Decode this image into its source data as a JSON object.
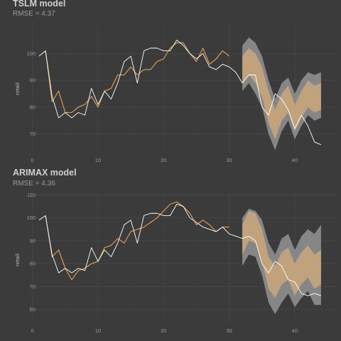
{
  "chart_data": [
    {
      "type": "line",
      "title": "TSLM model",
      "subtitle": "RMSE = 4.37",
      "xlabel": "",
      "ylabel": "retail",
      "xlim": [
        -0.5,
        46.5
      ],
      "ylim": [
        63,
        112
      ],
      "xticks": [
        0,
        10,
        20,
        30,
        40
      ],
      "yticks": [
        70,
        80,
        90,
        100
      ],
      "grid": true,
      "colors": {
        "actual": "#ffffff",
        "fitted": "#e6a056",
        "band80": "#c9a87c",
        "band95": "#8f8f8f"
      },
      "actual": {
        "x": [
          1,
          2,
          3,
          4,
          5,
          6,
          7,
          8,
          9,
          10,
          11,
          12,
          13,
          14,
          15,
          16,
          17,
          18,
          19,
          20,
          21,
          22,
          23,
          24,
          25,
          26,
          27,
          28,
          29,
          30,
          31,
          32,
          33,
          34,
          35,
          36,
          37,
          38,
          39,
          40,
          41,
          42,
          43,
          44
        ],
        "y": [
          99,
          101,
          84,
          76,
          78,
          76,
          78,
          77,
          87,
          81,
          86,
          83,
          89,
          97,
          99,
          89,
          101,
          102,
          102,
          101,
          101,
          105,
          103,
          100,
          98,
          100,
          95,
          94,
          96,
          95,
          93,
          89,
          92,
          92,
          80,
          77,
          85,
          83,
          79,
          72,
          77,
          73,
          67,
          66
        ]
      },
      "fitted": {
        "x": [
          2,
          3,
          4,
          5,
          6,
          7,
          8,
          9,
          10,
          11,
          12,
          13,
          14,
          15,
          16,
          17,
          18,
          19,
          20,
          21,
          22,
          23,
          24,
          25,
          26,
          27,
          28,
          29,
          30
        ],
        "y": [
          101,
          82,
          86,
          78,
          78,
          80,
          81,
          84,
          80,
          86,
          87,
          92,
          92,
          95,
          92,
          94,
          94,
          97,
          98,
          102,
          104,
          104,
          100,
          97,
          102,
          96,
          98,
          101,
          99
        ]
      },
      "forecast": {
        "x": [
          32,
          33,
          34,
          35,
          36,
          37,
          38,
          39,
          40,
          41,
          42,
          43,
          44
        ],
        "mean": [
          94,
          97,
          95,
          90,
          80,
          73,
          80,
          83,
          76,
          81,
          85,
          83,
          84
        ],
        "lo80": [
          89,
          92,
          89,
          84,
          74,
          68,
          75,
          78,
          71,
          76,
          80,
          78,
          79
        ],
        "hi80": [
          99,
          102,
          100,
          95,
          86,
          79,
          85,
          88,
          81,
          86,
          90,
          88,
          89
        ],
        "lo95": [
          86,
          89,
          85,
          80,
          70,
          64,
          71,
          75,
          68,
          73,
          77,
          75,
          76
        ],
        "hi95": [
          103,
          106,
          104,
          99,
          90,
          83,
          89,
          91,
          85,
          90,
          93,
          92,
          93
        ]
      }
    },
    {
      "type": "line",
      "title": "ARIMAX model",
      "subtitle": "RMSE = 4.36",
      "xlabel": "",
      "ylabel": "retail",
      "xlim": [
        -0.5,
        46.5
      ],
      "ylim": [
        54,
        112
      ],
      "xticks": [
        0,
        10,
        20,
        30,
        40
      ],
      "yticks": [
        60,
        70,
        80,
        90,
        100,
        110
      ],
      "grid": true,
      "colors": {
        "actual": "#ffffff",
        "fitted": "#e6a056",
        "band80": "#c9a87c",
        "band95": "#8f8f8f"
      },
      "actual": {
        "x": [
          1,
          2,
          3,
          4,
          5,
          6,
          7,
          8,
          9,
          10,
          11,
          12,
          13,
          14,
          15,
          16,
          17,
          18,
          19,
          20,
          21,
          22,
          23,
          24,
          25,
          26,
          27,
          28,
          29,
          30,
          31,
          32,
          33,
          34,
          35,
          36,
          37,
          38,
          39,
          40,
          41,
          42,
          43,
          44
        ],
        "y": [
          99,
          101,
          84,
          76,
          78,
          76,
          78,
          77,
          87,
          81,
          86,
          83,
          89,
          97,
          99,
          89,
          101,
          102,
          102,
          101,
          101,
          106,
          105,
          100,
          98,
          96,
          95,
          94,
          96,
          93,
          92,
          91,
          92,
          90,
          80,
          76,
          81,
          79,
          73,
          72,
          67,
          66,
          67,
          66
        ]
      },
      "fitted": {
        "x": [
          2,
          3,
          4,
          5,
          6,
          7,
          8,
          9,
          10,
          11,
          12,
          13,
          14,
          15,
          16,
          17,
          18,
          19,
          20,
          21,
          22,
          23,
          24,
          25,
          26,
          27,
          28,
          29,
          30
        ],
        "y": [
          101,
          83,
          86,
          78,
          73,
          77,
          78,
          80,
          81,
          87,
          88,
          91,
          89,
          94,
          95,
          96,
          98,
          100,
          103,
          106,
          107,
          105,
          102,
          97,
          99,
          97,
          94,
          96,
          96
        ]
      },
      "forecast": {
        "x": [
          32,
          33,
          34,
          35,
          36,
          37,
          38,
          39,
          40,
          41,
          42,
          43,
          44
        ],
        "mean": [
          91,
          97,
          96,
          88,
          76,
          72,
          78,
          80,
          73,
          78,
          81,
          76,
          78
        ],
        "lo80": [
          84,
          90,
          89,
          81,
          69,
          65,
          71,
          73,
          66,
          71,
          74,
          69,
          71
        ],
        "hi80": [
          97,
          103,
          102,
          95,
          83,
          79,
          85,
          87,
          80,
          85,
          88,
          84,
          86
        ],
        "lo95": [
          79,
          84,
          83,
          75,
          63,
          58,
          63,
          67,
          61,
          65,
          68,
          62,
          62
        ],
        "hi95": [
          100,
          104,
          103,
          99,
          89,
          84,
          91,
          93,
          86,
          92,
          95,
          93,
          97
        ]
      }
    }
  ]
}
